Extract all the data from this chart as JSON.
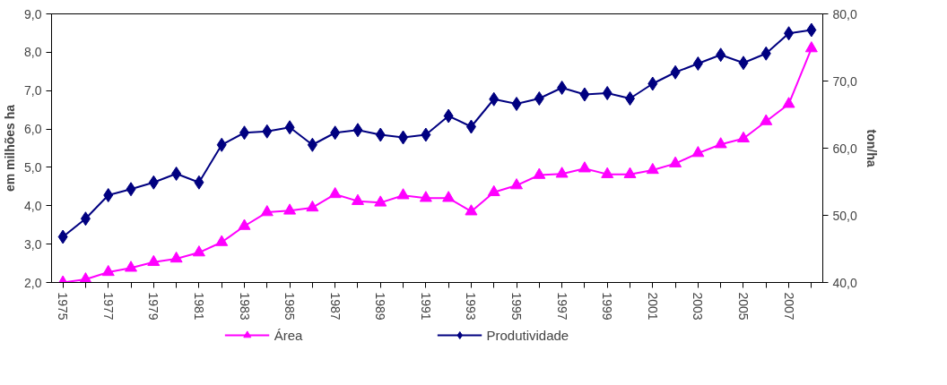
{
  "chart_data": {
    "type": "line",
    "categories": [
      "1975",
      null,
      "1977",
      null,
      "1979",
      null,
      "1981",
      null,
      "1983",
      null,
      "1985",
      null,
      "1987",
      null,
      "1989",
      null,
      "1991",
      null,
      "1993",
      null,
      "1995",
      null,
      "1997",
      null,
      "1999",
      null,
      "2001",
      null,
      "2003",
      null,
      "2005",
      null,
      "2007",
      null
    ],
    "series": [
      {
        "name": "Área",
        "color": "#ff00ff",
        "marker": "triangle",
        "values": [
          2.0,
          2.08,
          2.27,
          2.38,
          2.53,
          2.62,
          2.78,
          3.05,
          3.47,
          3.83,
          3.87,
          3.95,
          4.3,
          4.12,
          4.08,
          4.27,
          4.2,
          4.2,
          3.85,
          4.35,
          4.53,
          4.8,
          4.83,
          4.97,
          4.82,
          4.82,
          4.93,
          5.1,
          5.37,
          5.6,
          5.75,
          6.2,
          6.65,
          8.1
        ]
      },
      {
        "name": "Produtividade",
        "color": "#000080",
        "marker": "diamond",
        "axis": "y2",
        "values": [
          46.8,
          49.5,
          53.0,
          53.9,
          54.9,
          56.2,
          54.9,
          60.5,
          62.3,
          62.5,
          63.1,
          60.5,
          62.3,
          62.7,
          62.0,
          61.6,
          62.0,
          64.8,
          63.2,
          67.3,
          66.6,
          67.4,
          69.0,
          68.0,
          68.2,
          67.4,
          69.6,
          71.3,
          72.6,
          73.9,
          72.7,
          74.1,
          77.1,
          77.6
        ]
      }
    ],
    "ylabel": "em milhões ha",
    "y2label": "ton/ha",
    "ylim": [
      2,
      9
    ],
    "yticks": [
      {
        "value": 2,
        "label": "2,0"
      },
      {
        "value": 3,
        "label": "3,0"
      },
      {
        "value": 4,
        "label": "4,0"
      },
      {
        "value": 5,
        "label": "5,0"
      },
      {
        "value": 6,
        "label": "6,0"
      },
      {
        "value": 7,
        "label": "7,0"
      },
      {
        "value": 8,
        "label": "8,0"
      },
      {
        "value": 9,
        "label": "9,0"
      }
    ],
    "y2lim": [
      40,
      80
    ],
    "y2ticks": [
      {
        "value": 40,
        "label": "40,0"
      },
      {
        "value": 50,
        "label": "50,0"
      },
      {
        "value": 60,
        "label": "60,0"
      },
      {
        "value": 70,
        "label": "70,0"
      },
      {
        "value": 80,
        "label": "80,0"
      }
    ],
    "grid": false,
    "legend": "bottom",
    "line_style": "solid"
  }
}
